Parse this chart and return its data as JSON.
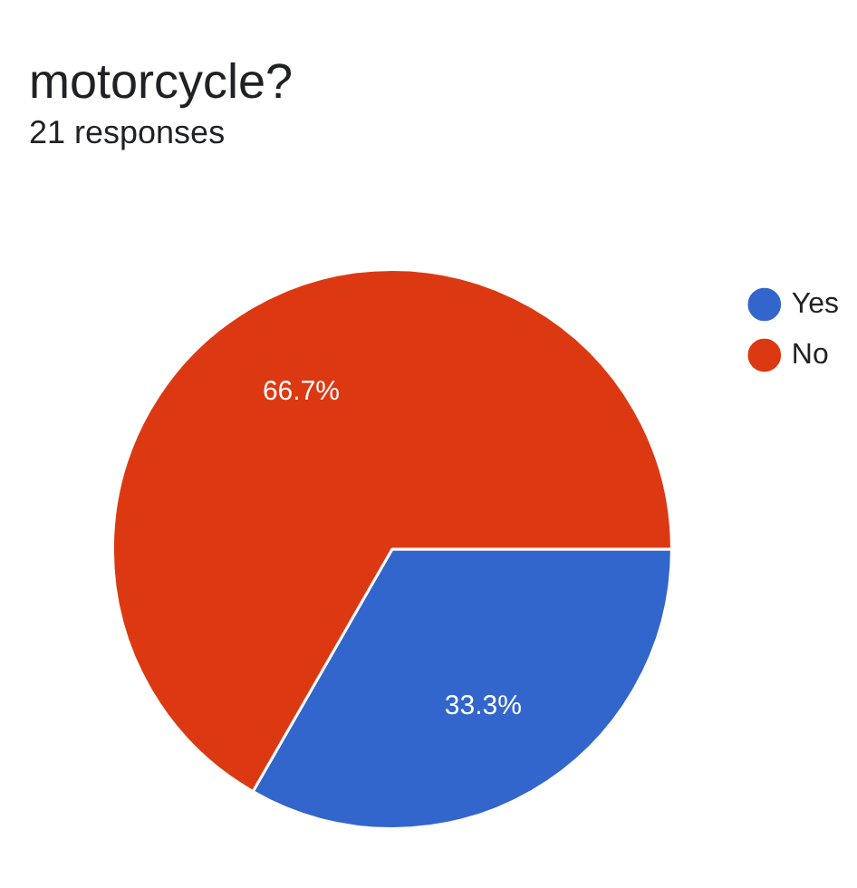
{
  "chart_data": {
    "type": "pie",
    "title": "motorcycle?",
    "subtitle": "21 responses",
    "categories": [
      "Yes",
      "No"
    ],
    "values": [
      33.3,
      66.7
    ],
    "colors": [
      "#3366cc",
      "#dc3912"
    ],
    "value_labels": [
      "33.3%",
      "66.7%"
    ],
    "legend": "top right"
  }
}
